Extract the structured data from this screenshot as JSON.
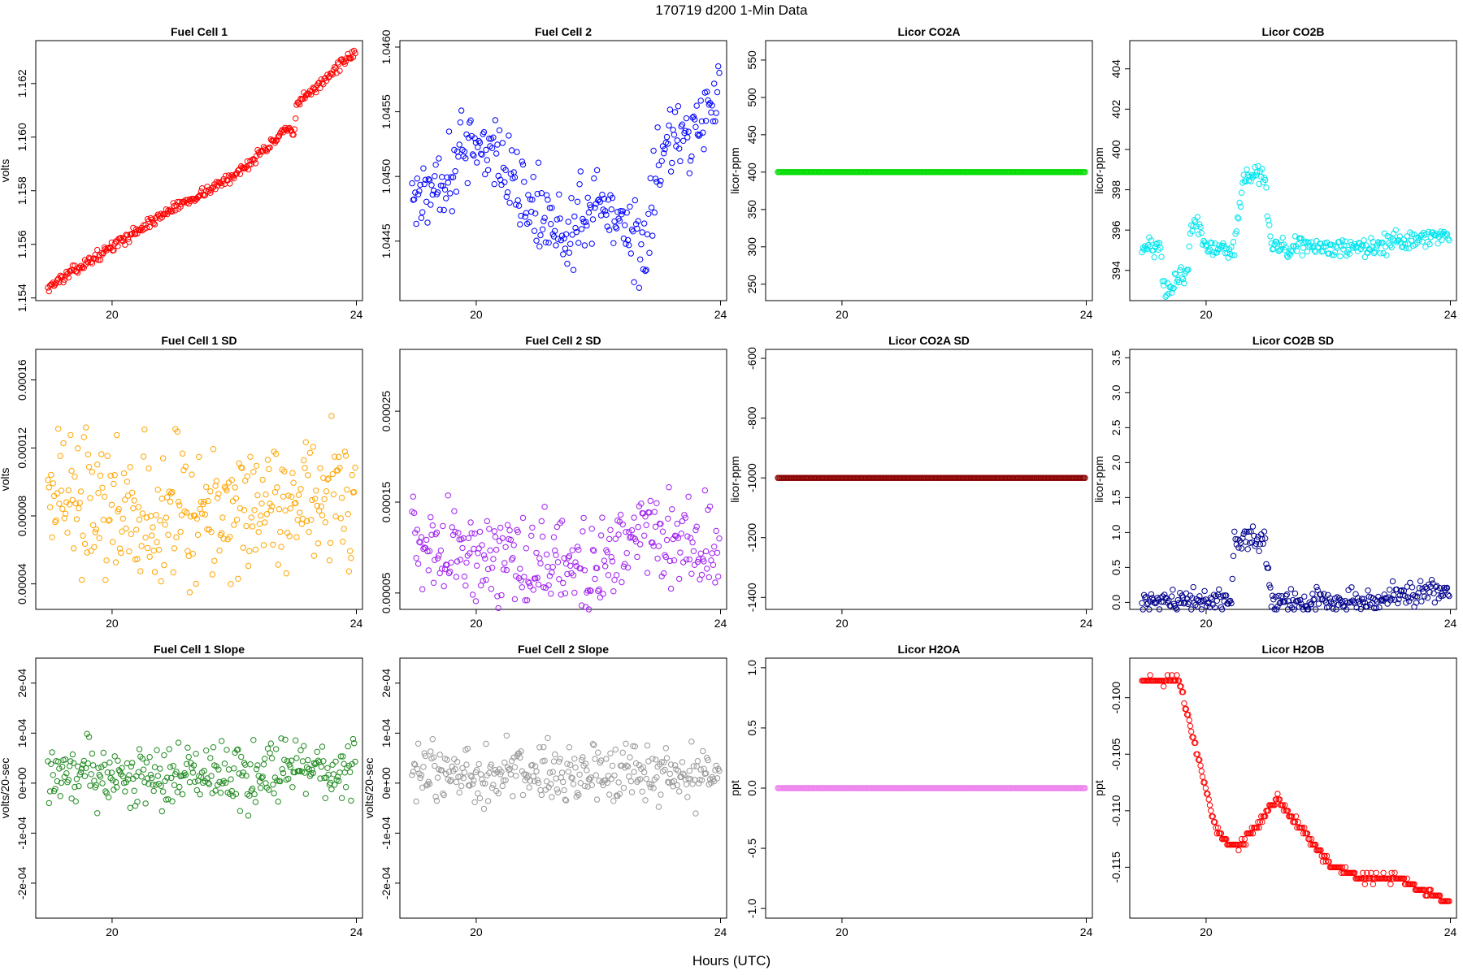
{
  "figure": {
    "title": "170719   d200   1-Min Data",
    "xlabel": "Hours (UTC)"
  },
  "chart_data": [
    {
      "id": "fc1",
      "type": "scatter",
      "title": "Fuel Cell 1",
      "ylabel": "volts",
      "color": "#ff0000",
      "xlim": [
        18.75,
        24.1
      ],
      "xticks": [
        "20",
        "24"
      ],
      "ylim": [
        1.1539,
        1.1636
      ],
      "yticks": [
        1.154,
        1.156,
        1.158,
        1.16,
        1.162
      ],
      "ytick_labels": [
        "1.154",
        "1.156",
        "1.158",
        "1.160",
        "1.162"
      ],
      "x_start": 18.95,
      "x_end": 23.98,
      "n": 300,
      "segments": [
        [
          0,
          1.1544
        ],
        [
          0.4,
          1.1573
        ],
        [
          0.6,
          1.1585
        ],
        [
          0.78,
          1.1603
        ],
        [
          0.8,
          1.16
        ],
        [
          0.81,
          1.1612
        ],
        [
          1.0,
          1.1632
        ]
      ],
      "noise": 0.00013
    },
    {
      "id": "fc2",
      "type": "scatter",
      "title": "Fuel Cell 2",
      "ylabel": "",
      "color": "#0000ff",
      "xlim": [
        18.75,
        24.1
      ],
      "xticks": [
        "20",
        "24"
      ],
      "ylim": [
        1.04404,
        1.04605
      ],
      "yticks": [
        1.0445,
        1.045,
        1.0455,
        1.046
      ],
      "ytick_labels": [
        "1.0445",
        "1.0450",
        "1.0455",
        "1.0460"
      ],
      "x_start": 18.95,
      "x_end": 23.98,
      "n": 300,
      "segments": [
        [
          0,
          1.0448
        ],
        [
          0.1,
          1.045
        ],
        [
          0.2,
          1.0453
        ],
        [
          0.3,
          1.0451
        ],
        [
          0.4,
          1.0447
        ],
        [
          0.5,
          1.04455
        ],
        [
          0.6,
          1.0448
        ],
        [
          0.7,
          1.04465
        ],
        [
          0.76,
          1.0444
        ],
        [
          0.8,
          1.0452
        ],
        [
          0.9,
          1.0453
        ],
        [
          1.0,
          1.0457
        ]
      ],
      "noise": 0.00022
    },
    {
      "id": "co2a",
      "type": "scatter",
      "title": "Licor CO2A",
      "ylabel": "licor-ppm",
      "color": "#00dd00",
      "xlim": [
        18.75,
        24.1
      ],
      "xticks": [
        "20",
        "24"
      ],
      "ylim": [
        228,
        576
      ],
      "yticks": [
        250,
        300,
        350,
        400,
        450,
        500,
        550
      ],
      "ytick_labels": [
        "250",
        "300",
        "350",
        "400",
        "450",
        "500",
        "550"
      ],
      "x_start": 18.95,
      "x_end": 23.98,
      "n": 300,
      "segments": [
        [
          0,
          400
        ],
        [
          1,
          400
        ]
      ],
      "noise": 0
    },
    {
      "id": "co2b",
      "type": "scatter",
      "title": "Licor CO2B",
      "ylabel": "licor-ppm",
      "color": "#00e5ee",
      "xlim": [
        18.75,
        24.1
      ],
      "xticks": [
        "20",
        "24"
      ],
      "ylim": [
        392.5,
        405.4
      ],
      "yticks": [
        394,
        396,
        398,
        400,
        402,
        404
      ],
      "ytick_labels": [
        "394",
        "396",
        "398",
        "400",
        "402",
        "404"
      ],
      "x_start": 18.95,
      "x_end": 23.98,
      "n": 300,
      "segments": [
        [
          0,
          395.1
        ],
        [
          0.06,
          395.1
        ],
        [
          0.07,
          393.0
        ],
        [
          0.1,
          393.0
        ],
        [
          0.11,
          393.8
        ],
        [
          0.15,
          393.8
        ],
        [
          0.16,
          396.4
        ],
        [
          0.19,
          396.4
        ],
        [
          0.2,
          395.3
        ],
        [
          0.24,
          395.0
        ],
        [
          0.3,
          395.0
        ],
        [
          0.33,
          398.6
        ],
        [
          0.4,
          398.8
        ],
        [
          0.42,
          395.2
        ],
        [
          0.8,
          395.2
        ],
        [
          0.82,
          395.6
        ],
        [
          1.0,
          395.6
        ]
      ],
      "noise": 0.35
    },
    {
      "id": "fc1sd",
      "type": "scatter",
      "title": "Fuel Cell 1 SD",
      "ylabel": "volts",
      "color": "#ffa500",
      "xlim": [
        18.75,
        24.1
      ],
      "xticks": [
        "20",
        "24"
      ],
      "ylim": [
        2.5e-05,
        0.000178
      ],
      "yticks": [
        4e-05,
        8e-05,
        0.00012,
        0.00016
      ],
      "ytick_labels": [
        "0.00004",
        "0.00008",
        "0.00012",
        "0.00016"
      ],
      "x_start": 18.95,
      "x_end": 23.98,
      "n": 300,
      "segments": [
        [
          0,
          9.5e-05
        ],
        [
          0.3,
          8.5e-05
        ],
        [
          0.55,
          8e-05
        ],
        [
          0.8,
          9e-05
        ],
        [
          1.0,
          8.8e-05
        ]
      ],
      "noise": 3e-05
    },
    {
      "id": "fc2sd",
      "type": "scatter",
      "title": "Fuel Cell 2 SD",
      "ylabel": "",
      "color": "#a020f0",
      "xlim": [
        18.75,
        24.1
      ],
      "xticks": [
        "20",
        "24"
      ],
      "ylim": [
        3.2e-05,
        0.000318
      ],
      "yticks": [
        5e-05,
        0.00015,
        0.00025
      ],
      "ytick_labels": [
        "0.00005",
        "0.00015",
        "0.00025"
      ],
      "x_start": 18.95,
      "x_end": 23.98,
      "n": 300,
      "segments": [
        [
          0,
          0.000105
        ],
        [
          0.3,
          8.5e-05
        ],
        [
          0.6,
          8e-05
        ],
        [
          0.75,
          0.00012
        ],
        [
          1.0,
          0.0001
        ]
      ],
      "noise": 3.5e-05
    },
    {
      "id": "co2asd",
      "type": "scatter",
      "title": "Licor CO2A SD",
      "ylabel": "licor-ppm",
      "color": "#8b0000",
      "xlim": [
        18.75,
        24.1
      ],
      "xticks": [
        "20",
        "24"
      ],
      "ylim": [
        -1440,
        -570
      ],
      "yticks": [
        -1400,
        -1200,
        -1000,
        -800,
        -600
      ],
      "ytick_labels": [
        "-1400",
        "-1200",
        "-1000",
        "-800",
        "-600"
      ],
      "x_start": 18.95,
      "x_end": 23.98,
      "n": 300,
      "segments": [
        [
          0,
          -1000
        ],
        [
          1,
          -1000
        ]
      ],
      "noise": 0
    },
    {
      "id": "co2bsd",
      "type": "scatter",
      "title": "Licor CO2B SD",
      "ylabel": "licor-ppm",
      "color": "#00008b",
      "xlim": [
        18.75,
        24.1
      ],
      "xticks": [
        "20",
        "24"
      ],
      "ylim": [
        -0.1,
        3.62
      ],
      "yticks": [
        0,
        0.5,
        1,
        1.5,
        2,
        2.5,
        3,
        3.5
      ],
      "ytick_labels": [
        "0.0",
        "0.5",
        "1.0",
        "1.5",
        "2.0",
        "2.5",
        "3.0",
        "3.5"
      ],
      "x_start": 18.95,
      "x_end": 23.98,
      "n": 300,
      "segments": [
        [
          0,
          0.02
        ],
        [
          0.29,
          0.05
        ],
        [
          0.3,
          0.9
        ],
        [
          0.4,
          0.9
        ],
        [
          0.42,
          0.01
        ],
        [
          0.8,
          0.01
        ],
        [
          0.82,
          0.15
        ],
        [
          1.0,
          0.15
        ]
      ],
      "noise": 0.12
    },
    {
      "id": "fc1slope",
      "type": "scatter",
      "title": "Fuel Cell 1 Slope",
      "ylabel": "volts/20-sec",
      "color": "#228b22",
      "xlim": [
        18.75,
        24.1
      ],
      "xticks": [
        "20",
        "24"
      ],
      "ylim": [
        -0.00027,
        0.00025
      ],
      "yticks": [
        -0.0002,
        -0.0001,
        0,
        0.0001,
        0.0002
      ],
      "ytick_labels": [
        "-2e-04",
        "-1e-04",
        "0e+00",
        "1e-04",
        "2e-04"
      ],
      "x_start": 18.95,
      "x_end": 23.98,
      "n": 300,
      "segments": [
        [
          0,
          2e-05
        ],
        [
          1,
          2e-05
        ]
      ],
      "noise": 4.5e-05
    },
    {
      "id": "fc2slope",
      "type": "scatter",
      "title": "Fuel Cell 2 Slope",
      "ylabel": "volts/20-sec",
      "color": "#999999",
      "xlim": [
        18.75,
        24.1
      ],
      "xticks": [
        "20",
        "24"
      ],
      "ylim": [
        -0.00027,
        0.00025
      ],
      "yticks": [
        -0.0002,
        -0.0001,
        0,
        0.0001,
        0.0002
      ],
      "ytick_labels": [
        "-2e-04",
        "-1e-04",
        "0e+00",
        "1e-04",
        "2e-04"
      ],
      "x_start": 18.95,
      "x_end": 23.98,
      "n": 300,
      "segments": [
        [
          0,
          2e-05
        ],
        [
          1,
          2e-05
        ]
      ],
      "noise": 4e-05
    },
    {
      "id": "h2oa",
      "type": "scatter",
      "title": "Licor H2OA",
      "ylabel": "ppt",
      "color": "#ee82ee",
      "xlim": [
        18.75,
        24.1
      ],
      "xticks": [
        "20",
        "24"
      ],
      "ylim": [
        -1.08,
        1.08
      ],
      "yticks": [
        -1,
        -0.5,
        0,
        0.5,
        1
      ],
      "ytick_labels": [
        "-1.0",
        "-0.5",
        "0.0",
        "0.5",
        "1.0"
      ],
      "x_start": 18.95,
      "x_end": 23.98,
      "n": 300,
      "segments": [
        [
          0,
          0
        ],
        [
          1,
          0
        ]
      ],
      "noise": 0
    },
    {
      "id": "h2ob",
      "type": "scatter",
      "title": "Licor H2OB",
      "ylabel": "ppt",
      "color": "#ff0000",
      "xlim": [
        18.75,
        24.1
      ],
      "xticks": [
        "20",
        "24"
      ],
      "ylim": [
        -0.1195,
        -0.0965
      ],
      "yticks": [
        -0.115,
        -0.11,
        -0.105,
        -0.1
      ],
      "ytick_labels": [
        "-0.115",
        "-0.110",
        "-0.105",
        "-0.100"
      ],
      "x_start": 18.95,
      "x_end": 23.98,
      "n": 300,
      "quantum": 0.0005,
      "segments": [
        [
          0,
          -0.0985
        ],
        [
          0.12,
          -0.0985
        ],
        [
          0.24,
          -0.1115
        ],
        [
          0.28,
          -0.113
        ],
        [
          0.32,
          -0.113
        ],
        [
          0.38,
          -0.111
        ],
        [
          0.44,
          -0.109
        ],
        [
          0.5,
          -0.111
        ],
        [
          0.56,
          -0.113
        ],
        [
          0.62,
          -0.115
        ],
        [
          0.72,
          -0.116
        ],
        [
          0.86,
          -0.116
        ],
        [
          0.9,
          -0.117
        ],
        [
          1.0,
          -0.118
        ]
      ],
      "noise": 0.00025
    }
  ]
}
